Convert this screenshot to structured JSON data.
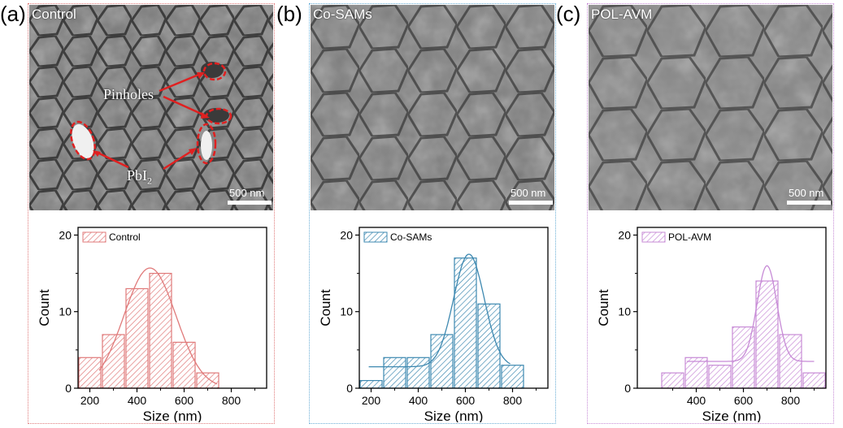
{
  "panels": [
    {
      "letter": "(a)",
      "sem_label": "Control",
      "scalebar": "500 nm",
      "annotations": {
        "pinholes": "Pinholes",
        "pbi2": "PbI",
        "pbi2_sub": "2"
      },
      "box_color": "#e07a7a",
      "tex_color": "#cc4444"
    },
    {
      "letter": "(b)",
      "sem_label": "Co-SAMs",
      "scalebar": "500 nm",
      "box_color": "#6aaed6",
      "tex_color": "#2a7aa6"
    },
    {
      "letter": "(c)",
      "sem_label": "POL-AVM",
      "scalebar": "500 nm",
      "box_color": "#c78bd6",
      "tex_color": "#b070c0"
    }
  ],
  "chart_data": [
    {
      "type": "bar",
      "legend": "Control",
      "xlabel": "Size (nm)",
      "ylabel": "Count",
      "xlim": [
        150,
        950
      ],
      "ylim": [
        0,
        21
      ],
      "xticks": [
        200,
        400,
        600,
        800
      ],
      "yticks": [
        0,
        10,
        20
      ],
      "bin_width": 100,
      "x": [
        200,
        300,
        400,
        500,
        600,
        700
      ],
      "values": [
        4,
        7,
        13,
        15,
        6,
        2
      ],
      "fit": {
        "mean": 455,
        "sd": 110,
        "peak": 15.7,
        "base": 0,
        "xmin": 240,
        "xmax": 740
      },
      "color": "#e07a7a",
      "legend_pos": "top-left"
    },
    {
      "type": "bar",
      "legend": "Co-SAMs",
      "xlabel": "Size (nm)",
      "ylabel": "Count",
      "xlim": [
        150,
        950
      ],
      "ylim": [
        0,
        21
      ],
      "xticks": [
        200,
        400,
        600,
        800
      ],
      "yticks": [
        0,
        10,
        20
      ],
      "bin_width": 100,
      "x": [
        200,
        300,
        400,
        500,
        600,
        700,
        800
      ],
      "values": [
        1,
        4,
        4,
        7,
        17,
        11,
        3
      ],
      "fit": {
        "mean": 615,
        "sd": 65,
        "peak": 17.5,
        "base": 2.8,
        "xmin": 190,
        "xmax": 790
      },
      "color": "#3d88b0",
      "legend_pos": "top-left"
    },
    {
      "type": "bar",
      "legend": "POL-AVM",
      "xlabel": "Size (nm)",
      "ylabel": "Count",
      "xlim": [
        150,
        950
      ],
      "ylim": [
        0,
        21
      ],
      "xticks": [
        400,
        600,
        800
      ],
      "yticks": [
        0,
        10,
        20
      ],
      "bin_width": 100,
      "x": [
        300,
        400,
        500,
        600,
        700,
        800,
        900
      ],
      "values": [
        2,
        4,
        3,
        8,
        14,
        7,
        2
      ],
      "fit": {
        "mean": 700,
        "sd": 42,
        "peak": 16,
        "base": 3.5,
        "xmin": 360,
        "xmax": 900
      },
      "color": "#c78bd6",
      "legend_pos": "top-left"
    }
  ]
}
